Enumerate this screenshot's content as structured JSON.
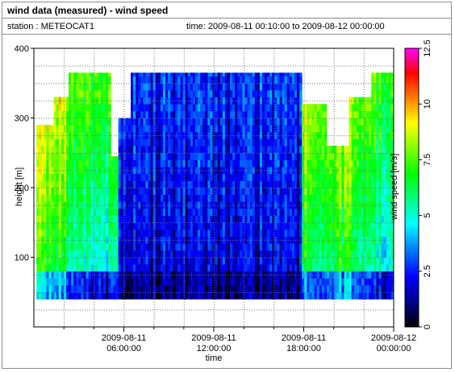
{
  "header": {
    "title": "wind data (measured) - wind speed",
    "station": "station : METEOCAT1",
    "timerange": "time: 2009-08-11 00:10:00 to 2009-08-12 00:00:00"
  },
  "chart_data": {
    "type": "heatmap",
    "xlabel": "time",
    "ylabel": "height [m]",
    "colorbar_label": "wind speed [m/s]",
    "x_ticks": [
      {
        "value": 6,
        "label": [
          "2009-08-11",
          "06:00:00"
        ]
      },
      {
        "value": 12,
        "label": [
          "2009-08-11",
          "12:00:00"
        ]
      },
      {
        "value": 18,
        "label": [
          "2009-08-11",
          "18:00:00"
        ]
      },
      {
        "value": 24,
        "label": [
          "2009-08-12",
          "00:00:00"
        ]
      }
    ],
    "xlim_hours": [
      0.17,
      24
    ],
    "ylim": [
      0,
      400
    ],
    "y_ticks": [
      100,
      200,
      300,
      400
    ],
    "height_range": [
      40,
      365
    ],
    "colorbar_range": [
      0,
      12.5
    ],
    "colorbar_ticks": [
      "0",
      "2.5",
      "5",
      "7.5",
      "10",
      "12.5"
    ],
    "colorscale": [
      "#000000",
      "#00008b",
      "#0000ff",
      "#0080ff",
      "#00ffff",
      "#00ff80",
      "#00ff00",
      "#80ff00",
      "#ffff00",
      "#ff8000",
      "#ff0000",
      "#ff00ff"
    ],
    "profile_top_height": [
      {
        "t": [
          0.17,
          1.2
        ],
        "h": 290
      },
      {
        "t": [
          1.2,
          2.2
        ],
        "h": 330
      },
      {
        "t": [
          2.2,
          3.5
        ],
        "h": 365
      },
      {
        "t": [
          3.5,
          5.0
        ],
        "h": 365
      },
      {
        "t": [
          5.0,
          5.6
        ],
        "h": 245
      },
      {
        "t": [
          5.6,
          6.3
        ],
        "h": 300
      },
      {
        "t": [
          6.3,
          17.8
        ],
        "h": 365
      },
      {
        "t": [
          17.8,
          19.5
        ],
        "h": 320
      },
      {
        "t": [
          19.5,
          21.0
        ],
        "h": 260
      },
      {
        "t": [
          21.0,
          22.5
        ],
        "h": 330
      },
      {
        "t": [
          22.5,
          24.0
        ],
        "h": 365
      }
    ],
    "mean_speed_by_period": [
      {
        "t": [
          0.17,
          2.0
        ],
        "value": 7.5
      },
      {
        "t": [
          2.0,
          5.5
        ],
        "value": 5.5
      },
      {
        "t": [
          5.5,
          17.8
        ],
        "value": 2.0
      },
      {
        "t": [
          17.8,
          21.5
        ],
        "value": 7.0
      },
      {
        "t": [
          21.5,
          24.0
        ],
        "value": 5.5
      }
    ]
  }
}
